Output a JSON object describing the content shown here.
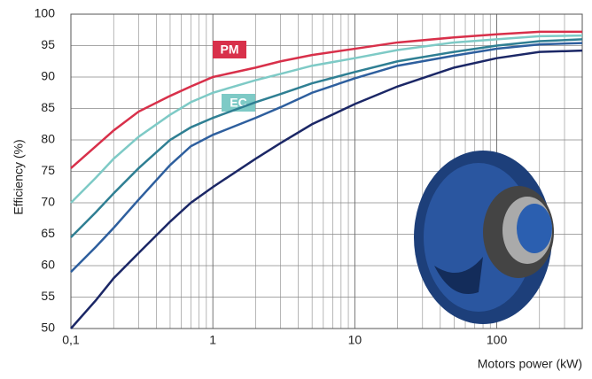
{
  "chart_data": {
    "type": "line",
    "x_label": "Motors power (kW)",
    "y_label": "Efficiency  (%)",
    "log_x": true,
    "grid": true,
    "xlim": [
      0.1,
      400
    ],
    "ylim": [
      50,
      100
    ],
    "xticks": [
      {
        "value": 0.1,
        "label": "0,1"
      },
      1,
      10,
      100
    ],
    "yticks": [
      50,
      55,
      60,
      65,
      70,
      75,
      80,
      85,
      90,
      95,
      100
    ],
    "x": [
      0.1,
      0.15,
      0.2,
      0.3,
      0.5,
      0.7,
      1,
      2,
      3,
      5,
      10,
      20,
      50,
      100,
      200,
      400
    ],
    "series": [
      {
        "name": "PM",
        "color": "#d8304a",
        "values": [
          75.5,
          79,
          81.5,
          84.5,
          87,
          88.5,
          90,
          91.5,
          92.5,
          93.5,
          94.5,
          95.5,
          96.3,
          96.8,
          97.2,
          97.2
        ]
      },
      {
        "name": "EC",
        "color": "#7ecac6",
        "values": [
          70,
          74,
          77,
          80.5,
          84,
          86,
          87.5,
          89.5,
          90.5,
          91.8,
          93,
          94.3,
          95.5,
          96,
          96.5,
          96.6
        ]
      },
      {
        "color": "#2f7f93",
        "values": [
          64.5,
          68.5,
          71.5,
          75.5,
          80,
          82,
          83.5,
          86,
          87.3,
          89,
          90.8,
          92.5,
          94,
          95,
          95.7,
          96
        ]
      },
      {
        "color": "#2e5f9e",
        "values": [
          59,
          63,
          66,
          70.5,
          76,
          79,
          80.8,
          83.5,
          85.2,
          87.5,
          89.8,
          91.8,
          93.4,
          94.5,
          95.2,
          95.4
        ]
      },
      {
        "color": "#1b2766",
        "values": [
          50,
          54.5,
          58,
          62,
          67,
          70,
          72.5,
          77,
          79.5,
          82.5,
          85.7,
          88.5,
          91.5,
          93,
          94,
          94.2
        ]
      }
    ]
  }
}
